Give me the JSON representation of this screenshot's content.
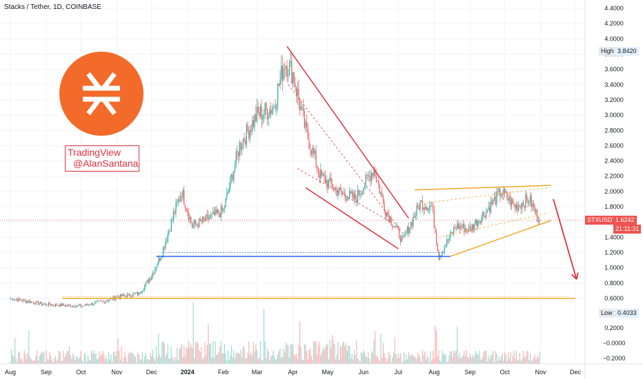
{
  "header": {
    "symbol_line": "Stacks / Tether, 1D, COINBASE"
  },
  "watermark": {
    "line1": "TradingView",
    "line2": "@AlanSantana"
  },
  "price_axis": {
    "ticks": [
      "4.4000",
      "4.2000",
      "4.0000",
      "3.8000",
      "3.6000",
      "3.4000",
      "3.2000",
      "3.0000",
      "2.8000",
      "2.6000",
      "2.4000",
      "2.2000",
      "2.0000",
      "1.8000",
      "1.6000",
      "1.4000",
      "1.2000",
      "1.0000",
      "0.8000",
      "0.6000"
    ],
    "high_label": "High",
    "high_value": "3.8420",
    "low_label": "Low",
    "low_value": "0.4033",
    "current_label": "STXUSDT",
    "current_value": "1.6242",
    "countdown": "21:11:31"
  },
  "volume_axis": {
    "ticks": [
      "0.4000",
      "0.2000",
      "−0.0000",
      "−0.2000"
    ]
  },
  "time_axis": {
    "ticks": [
      "Aug",
      "Sep",
      "Oct",
      "Nov",
      "Dec",
      "2024",
      "Feb",
      "Mar",
      "Apr",
      "May",
      "Jun",
      "Jul",
      "Aug",
      "Sep",
      "Oct",
      "Nov",
      "Dec"
    ]
  },
  "colors": {
    "up": "#26a69a",
    "down": "#ef5350",
    "wedge": "#e0303f",
    "triangle": "#f5a623",
    "support": "#2962ff",
    "logo": "#f26b2a"
  },
  "chart_data": {
    "type": "candlestick",
    "title": "Stacks / Tether, 1D, COINBASE",
    "x_range": [
      "2023-08",
      "2024-12"
    ],
    "ylim": [
      0.6,
      4.4
    ],
    "high": 3.842,
    "low": 0.4033,
    "last_price": 1.6242,
    "close_path": [
      {
        "date": "2023-08-01",
        "close": 0.6
      },
      {
        "date": "2023-09-01",
        "close": 0.52
      },
      {
        "date": "2023-10-01",
        "close": 0.5
      },
      {
        "date": "2023-10-20",
        "close": 0.56
      },
      {
        "date": "2023-11-01",
        "close": 0.62
      },
      {
        "date": "2023-11-20",
        "close": 0.66
      },
      {
        "date": "2023-12-01",
        "close": 0.9
      },
      {
        "date": "2023-12-10",
        "close": 1.2
      },
      {
        "date": "2023-12-20",
        "close": 1.7
      },
      {
        "date": "2023-12-27",
        "close": 2.0
      },
      {
        "date": "2024-01-05",
        "close": 1.55
      },
      {
        "date": "2024-01-20",
        "close": 1.65
      },
      {
        "date": "2024-02-01",
        "close": 1.75
      },
      {
        "date": "2024-02-15",
        "close": 2.6
      },
      {
        "date": "2024-03-01",
        "close": 3.0
      },
      {
        "date": "2024-03-15",
        "close": 3.1
      },
      {
        "date": "2024-03-25",
        "close": 3.7
      },
      {
        "date": "2024-04-01",
        "close": 3.55
      },
      {
        "date": "2024-04-12",
        "close": 2.8
      },
      {
        "date": "2024-04-25",
        "close": 2.2
      },
      {
        "date": "2024-05-10",
        "close": 2.0
      },
      {
        "date": "2024-05-25",
        "close": 1.9
      },
      {
        "date": "2024-06-10",
        "close": 2.3
      },
      {
        "date": "2024-06-20",
        "close": 1.75
      },
      {
        "date": "2024-07-05",
        "close": 1.35
      },
      {
        "date": "2024-07-20",
        "close": 1.85
      },
      {
        "date": "2024-07-30",
        "close": 1.8
      },
      {
        "date": "2024-08-05",
        "close": 1.15
      },
      {
        "date": "2024-08-20",
        "close": 1.55
      },
      {
        "date": "2024-09-01",
        "close": 1.5
      },
      {
        "date": "2024-09-15",
        "close": 1.75
      },
      {
        "date": "2024-09-28",
        "close": 2.0
      },
      {
        "date": "2024-10-10",
        "close": 1.8
      },
      {
        "date": "2024-10-22",
        "close": 1.9
      },
      {
        "date": "2024-10-31",
        "close": 1.6242
      }
    ],
    "annotations": [
      {
        "name": "falling-wedge",
        "upper": [
          [
            "2024-03-27",
            3.9
          ],
          [
            "2024-07-10",
            1.65
          ]
        ],
        "lower": [
          [
            "2024-04-12",
            2.05
          ],
          [
            "2024-07-01",
            1.25
          ]
        ]
      },
      {
        "name": "rising-triangle",
        "upper": [
          [
            "2024-07-15",
            2.02
          ],
          [
            "2024-11-10",
            2.08
          ]
        ],
        "lower": [
          [
            "2024-08-15",
            1.15
          ],
          [
            "2024-11-10",
            1.62
          ]
        ]
      },
      {
        "name": "support-1.15",
        "price": 1.15,
        "from": "2023-12-05",
        "to": "2024-08-15"
      },
      {
        "name": "support-0.60",
        "price": 0.6,
        "from": "2023-09-15",
        "to": "2024-12-01"
      },
      {
        "name": "projection-arrow",
        "from": [
          "2024-11-12",
          1.9
        ],
        "to": [
          "2024-12-02",
          0.85
        ]
      }
    ]
  }
}
